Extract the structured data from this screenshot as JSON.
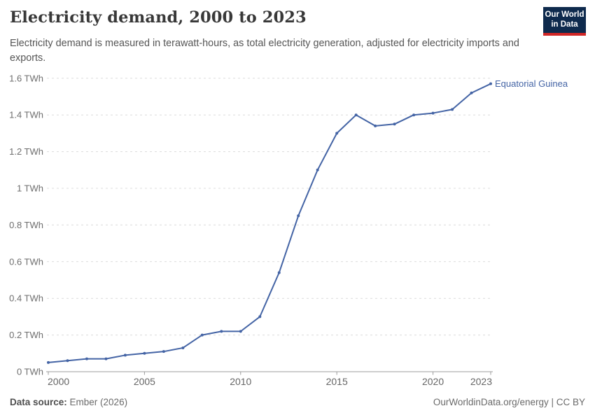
{
  "header": {
    "title": "Electricity demand, 2000 to 2023",
    "subtitle": "Electricity demand is measured in terawatt-hours, as total electricity generation, adjusted for electricity imports and exports.",
    "logo": {
      "line1": "Our World",
      "line2": "in Data"
    }
  },
  "footer": {
    "source_label": "Data source:",
    "source_value": " Ember (2026)",
    "credit": "OurWorldinData.org/energy | CC BY"
  },
  "colors": {
    "series_blue": "#4464a5",
    "logo_navy": "#0e2a4d",
    "logo_red": "#d02626",
    "gridline": "#dcdcdc",
    "axis": "#9c9c9c"
  },
  "chart_data": {
    "type": "line",
    "title": "Electricity demand, 2000 to 2023",
    "unit": "TWh",
    "grid": "horizontal-dashed",
    "legend_position": "end-of-line-label",
    "xlim": [
      2000,
      2023
    ],
    "ylim": [
      0,
      1.6
    ],
    "x": [
      2000,
      2001,
      2002,
      2003,
      2004,
      2005,
      2006,
      2007,
      2008,
      2009,
      2010,
      2011,
      2012,
      2013,
      2014,
      2015,
      2016,
      2017,
      2018,
      2019,
      2020,
      2021,
      2022,
      2023
    ],
    "series": [
      {
        "name": "Equatorial Guinea",
        "color": "#4464a5",
        "values": [
          0.05,
          0.06,
          0.07,
          0.07,
          0.09,
          0.1,
          0.11,
          0.13,
          0.2,
          0.22,
          0.22,
          0.3,
          0.54,
          0.85,
          1.1,
          1.3,
          1.4,
          1.34,
          1.35,
          1.4,
          1.41,
          1.43,
          1.52,
          1.57
        ]
      }
    ],
    "y_ticks": [
      0,
      0.2,
      0.4,
      0.6,
      0.8,
      1,
      1.2,
      1.4,
      1.6
    ],
    "y_tick_labels": [
      "0 TWh",
      "0.2 TWh",
      "0.4 TWh",
      "0.6 TWh",
      "0.8 TWh",
      "1 TWh",
      "1.2 TWh",
      "1.4 TWh",
      "1.6 TWh"
    ],
    "x_tick_years": [
      2000,
      2005,
      2010,
      2015,
      2020,
      2023
    ],
    "x_tick_labels": [
      "2000",
      "2005",
      "2010",
      "2015",
      "2020",
      "2023"
    ]
  }
}
